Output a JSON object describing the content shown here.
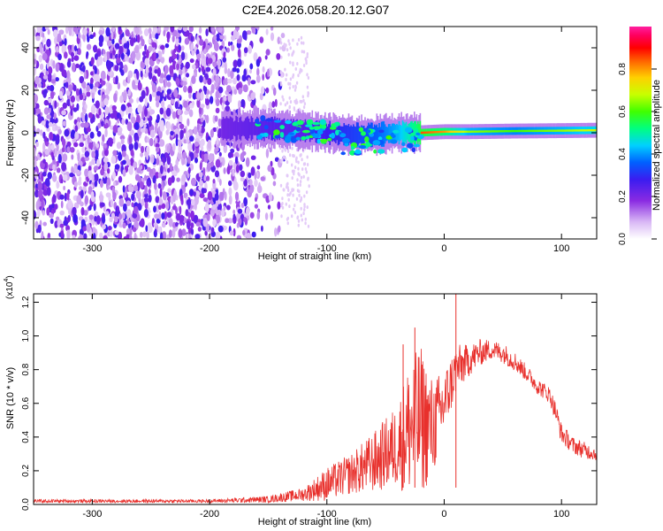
{
  "chart_data": [
    {
      "type": "heatmap",
      "title": "C2E4.2026.058.20.12.G07",
      "xlabel": "Height of straight line (km)",
      "ylabel": "Frequency (Hz)",
      "xlim": [
        -350,
        130
      ],
      "ylim": [
        -50,
        50
      ],
      "x_ticks": [
        -300,
        -200,
        -100,
        0,
        100
      ],
      "y_ticks": [
        -40,
        -20,
        0,
        20,
        40
      ],
      "colorbar": {
        "label": "Normalized spectral amplitude",
        "range": [
          0,
          1
        ],
        "ticks": [
          "0.0",
          "0.2",
          "0.4",
          "0.6",
          "0.8"
        ]
      },
      "signal_track": [
        {
          "x": -190,
          "freq": 2,
          "amp": 0.3
        },
        {
          "x": -150,
          "freq": 2,
          "amp": 0.35
        },
        {
          "x": -120,
          "freq": 1,
          "amp": 0.35
        },
        {
          "x": -100,
          "freq": 0,
          "amp": 0.4
        },
        {
          "x": -80,
          "freq": -1,
          "amp": 0.45
        },
        {
          "x": -60,
          "freq": -1,
          "amp": 0.5
        },
        {
          "x": -40,
          "freq": 0,
          "amp": 0.6
        },
        {
          "x": -20,
          "freq": 0,
          "amp": 0.8
        },
        {
          "x": 0,
          "freq": 0.5,
          "amp": 0.75
        },
        {
          "x": 20,
          "freq": 0.5,
          "amp": 0.6
        },
        {
          "x": 60,
          "freq": 0.8,
          "amp": 0.55
        },
        {
          "x": 100,
          "freq": 1,
          "amp": 0.6
        },
        {
          "x": 130,
          "freq": 1.2,
          "amp": 0.65
        }
      ],
      "noise_region": {
        "x": [
          -350,
          -130
        ],
        "freq": [
          -50,
          50
        ]
      }
    },
    {
      "type": "line",
      "xlabel": "Height of straight line (km)",
      "ylabel": "SNR (10 * v/v)",
      "y_scale_label": "(x10",
      "y_scale_exponent": "4",
      "xlim": [
        -350,
        130
      ],
      "ylim": [
        0,
        1.25
      ],
      "x_ticks": [
        -300,
        -200,
        -100,
        0,
        100
      ],
      "y_ticks": [
        "0.0",
        "0.2",
        "0.4",
        "0.6",
        "0.8",
        "1.0",
        "1.2"
      ],
      "series_color": "#e8302c",
      "envelope": {
        "x": [
          -350,
          -300,
          -250,
          -200,
          -150,
          -120,
          -100,
          -80,
          -60,
          -40,
          -30,
          -20,
          -10,
          0,
          10,
          20,
          30,
          40,
          50,
          60,
          70,
          80,
          90,
          95,
          100,
          110,
          120,
          130
        ],
        "mean": [
          0.02,
          0.02,
          0.02,
          0.02,
          0.03,
          0.06,
          0.12,
          0.18,
          0.25,
          0.35,
          0.45,
          0.5,
          0.45,
          0.6,
          0.8,
          0.85,
          0.9,
          0.92,
          0.9,
          0.85,
          0.78,
          0.7,
          0.65,
          0.55,
          0.42,
          0.35,
          0.32,
          0.3
        ],
        "spread": [
          0.01,
          0.01,
          0.01,
          0.01,
          0.02,
          0.04,
          0.1,
          0.12,
          0.18,
          0.25,
          0.4,
          0.45,
          0.3,
          0.2,
          0.15,
          0.1,
          0.08,
          0.06,
          0.06,
          0.06,
          0.05,
          0.05,
          0.05,
          0.06,
          0.06,
          0.05,
          0.05,
          0.04
        ]
      },
      "peaks": [
        {
          "x": 10,
          "y": 1.25
        },
        {
          "x": -25,
          "y": 1.05
        },
        {
          "x": -35,
          "y": 0.95
        }
      ]
    }
  ]
}
